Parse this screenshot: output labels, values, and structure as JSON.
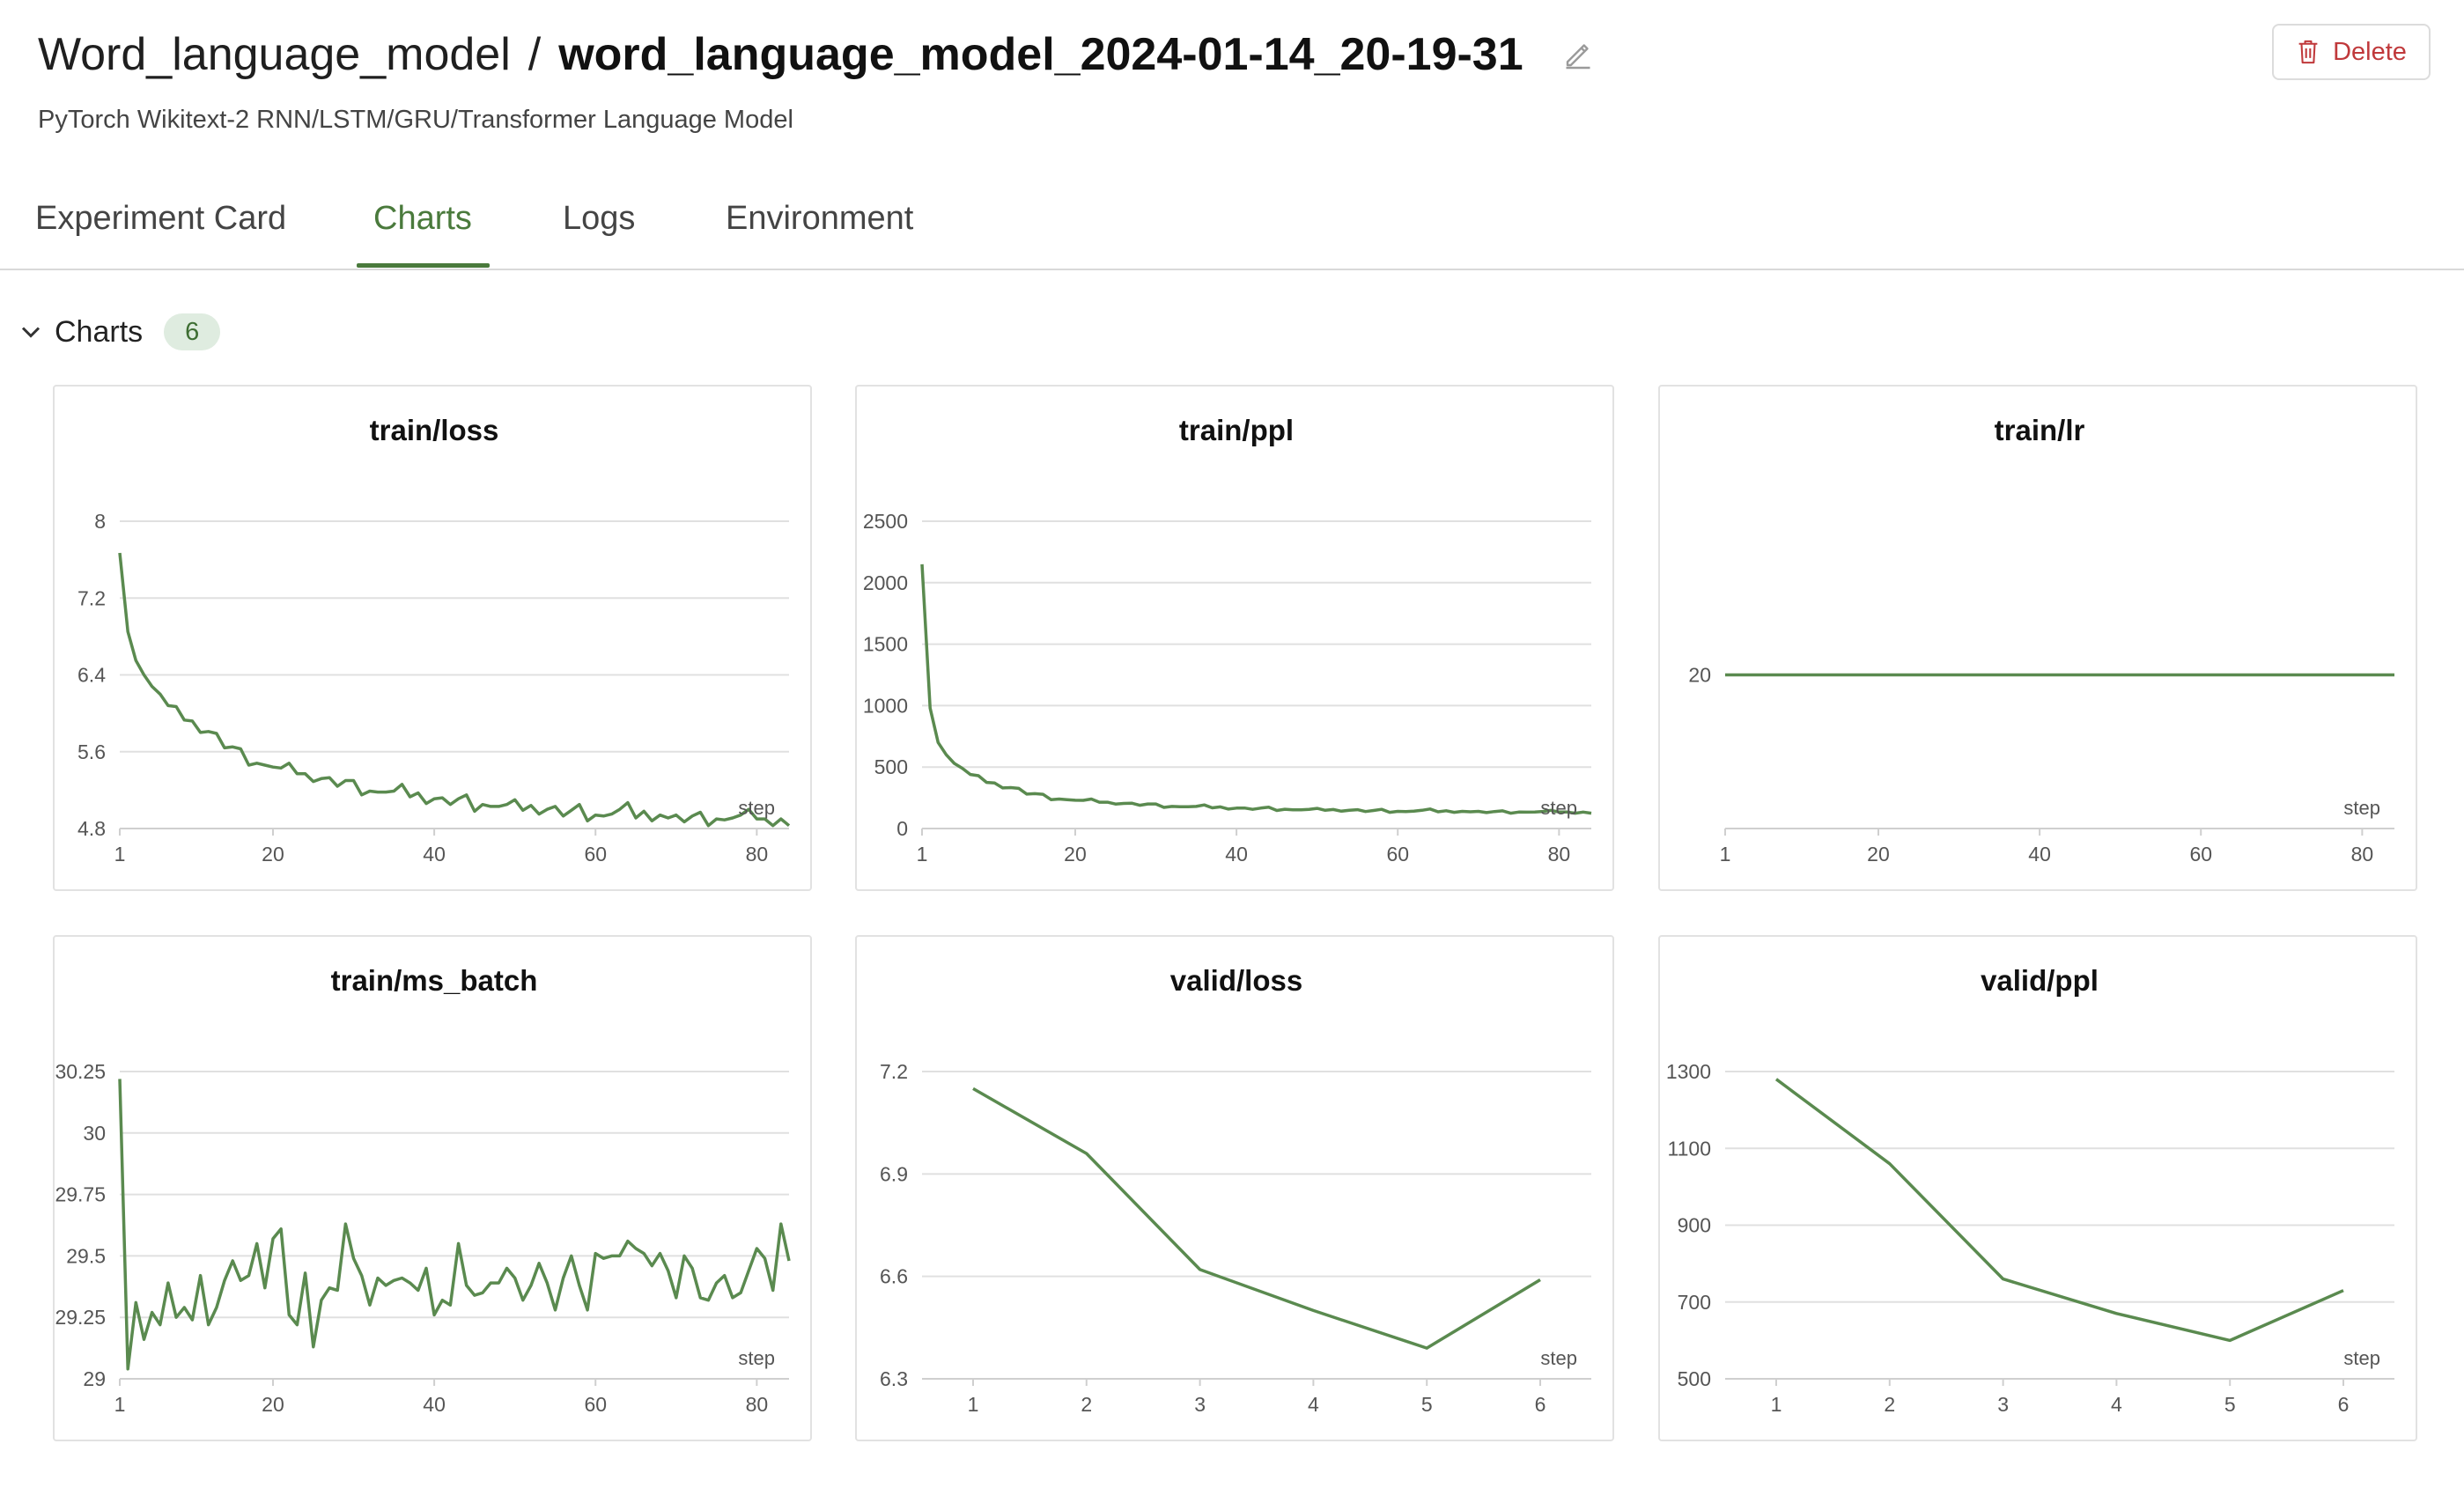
{
  "header": {
    "project": "Word_language_model",
    "separator": "/",
    "experiment": "word_language_model_2024-01-14_20-19-31",
    "description": "PyTorch Wikitext-2 RNN/LSTM/GRU/Transformer Language Model",
    "delete_label": "Delete",
    "edit_icon": "pencil-icon",
    "delete_icon": "trash-icon"
  },
  "tabs": [
    {
      "label": "Experiment Card",
      "active": false
    },
    {
      "label": "Charts",
      "active": true
    },
    {
      "label": "Logs",
      "active": false
    },
    {
      "label": "Environment",
      "active": false
    }
  ],
  "section": {
    "label": "Charts",
    "count": "6"
  },
  "colors": {
    "accent": "#4a7a3c",
    "line": "#5a8a4f",
    "grid": "#e0e0e0",
    "danger": "#c0393b"
  },
  "chart_data": [
    {
      "type": "line",
      "title": "train/loss",
      "xlabel": "step",
      "ylim": [
        4.8,
        8
      ],
      "yticks": [
        "8",
        "7.2",
        "6.4",
        "5.6",
        "4.8"
      ],
      "ytickvals": [
        8,
        7.2,
        6.4,
        5.6,
        4.8
      ],
      "xlim": [
        1,
        84
      ],
      "xticks": [
        "1",
        "20",
        "40",
        "60",
        "80"
      ],
      "xtickvals": [
        1,
        20,
        40,
        60,
        80
      ],
      "series": [
        {
          "x": [
            1,
            2,
            3,
            4,
            5,
            6,
            7,
            8,
            9,
            10,
            11,
            12,
            13,
            14,
            15,
            16,
            17,
            18,
            19,
            20,
            21,
            22,
            23,
            24,
            25,
            26,
            27,
            28,
            29,
            30,
            31,
            32,
            33,
            34,
            35,
            36,
            37,
            38,
            39,
            40,
            41,
            42,
            43,
            44,
            45,
            46,
            47,
            48,
            49,
            50,
            51,
            52,
            53,
            54,
            55,
            56,
            57,
            58,
            59,
            60,
            61,
            62,
            63,
            64,
            65,
            66,
            67,
            68,
            69,
            70,
            71,
            72,
            73,
            74,
            75,
            76,
            77,
            78,
            79,
            80,
            81,
            82,
            83,
            84
          ],
          "values": [
            7.67,
            6.85,
            6.55,
            6.4,
            6.28,
            6.2,
            6.08,
            6.07,
            5.93,
            5.92,
            5.8,
            5.81,
            5.79,
            5.64,
            5.65,
            5.63,
            5.46,
            5.48,
            5.46,
            5.44,
            5.43,
            5.48,
            5.37,
            5.37,
            5.29,
            5.32,
            5.33,
            5.24,
            5.3,
            5.3,
            5.15,
            5.19,
            5.18,
            5.18,
            5.19,
            5.26,
            5.13,
            5.17,
            5.06,
            5.11,
            5.12,
            5.05,
            5.11,
            5.15,
            4.98,
            5.05,
            5.03,
            5.03,
            5.05,
            5.1,
            4.99,
            5.04,
            4.95,
            5.0,
            5.03,
            4.93,
            4.99,
            5.05,
            4.88,
            4.94,
            4.93,
            4.95,
            5.0,
            5.07,
            4.91,
            4.98,
            4.88,
            4.94,
            4.91,
            4.94,
            4.87,
            4.93,
            4.97,
            4.83,
            4.9,
            4.89,
            4.91,
            4.94,
            5.0,
            4.9,
            4.9,
            4.83,
            4.9,
            4.83
          ]
        }
      ]
    },
    {
      "type": "line",
      "title": "train/ppl",
      "xlabel": "step",
      "ylim": [
        0,
        2500
      ],
      "yticks": [
        "2500",
        "2000",
        "1500",
        "1000",
        "500",
        "0"
      ],
      "ytickvals": [
        2500,
        2000,
        1500,
        1000,
        500,
        0
      ],
      "xlim": [
        1,
        84
      ],
      "xticks": [
        "1",
        "20",
        "40",
        "60",
        "80"
      ],
      "xtickvals": [
        1,
        20,
        40,
        60,
        80
      ],
      "series": [
        {
          "x": [
            1,
            2,
            3,
            4,
            5,
            6,
            7,
            8,
            9,
            10,
            11,
            12,
            13,
            14,
            15,
            16,
            17,
            18,
            19,
            20,
            21,
            22,
            23,
            24,
            25,
            26,
            27,
            28,
            29,
            30,
            31,
            32,
            33,
            34,
            35,
            36,
            37,
            38,
            39,
            40,
            41,
            42,
            43,
            44,
            45,
            46,
            47,
            48,
            49,
            50,
            51,
            52,
            53,
            54,
            55,
            56,
            57,
            58,
            59,
            60,
            61,
            62,
            63,
            64,
            65,
            66,
            67,
            68,
            69,
            70,
            71,
            72,
            73,
            74,
            75,
            76,
            77,
            78,
            79,
            80,
            81,
            82,
            83,
            84
          ],
          "values": [
            2150,
            980,
            700,
            600,
            530,
            490,
            440,
            430,
            375,
            370,
            330,
            333,
            327,
            280,
            284,
            279,
            235,
            240,
            235,
            230,
            229,
            240,
            214,
            214,
            199,
            204,
            206,
            189,
            200,
            200,
            172,
            180,
            178,
            178,
            180,
            192,
            168,
            176,
            158,
            166,
            167,
            156,
            166,
            173,
            147,
            157,
            152,
            152,
            156,
            164,
            148,
            155,
            141,
            149,
            153,
            138,
            147,
            156,
            132,
            140,
            138,
            141,
            148,
            159,
            136,
            145,
            132,
            140,
            136,
            140,
            130,
            138,
            144,
            125,
            134,
            133,
            135,
            139,
            148,
            134,
            134,
            125,
            134,
            125
          ]
        }
      ]
    },
    {
      "type": "line",
      "title": "train/lr",
      "xlabel": "step",
      "ylim": [
        19,
        21
      ],
      "yticks": [
        "20"
      ],
      "ytickvals": [
        20
      ],
      "xlim": [
        1,
        84
      ],
      "xticks": [
        "1",
        "20",
        "40",
        "60",
        "80"
      ],
      "xtickvals": [
        1,
        20,
        40,
        60,
        80
      ],
      "series": [
        {
          "x": [
            1,
            84
          ],
          "values": [
            20,
            20
          ]
        }
      ]
    },
    {
      "type": "line",
      "title": "train/ms_batch",
      "xlabel": "step",
      "ylim": [
        29,
        30.25
      ],
      "yticks": [
        "30.25",
        "30",
        "29.75",
        "29.5",
        "29.25",
        "29"
      ],
      "ytickvals": [
        30.25,
        30,
        29.75,
        29.5,
        29.25,
        29
      ],
      "xlim": [
        1,
        84
      ],
      "xticks": [
        "1",
        "20",
        "40",
        "60",
        "80"
      ],
      "xtickvals": [
        1,
        20,
        40,
        60,
        80
      ],
      "series": [
        {
          "x": [
            1,
            2,
            3,
            4,
            5,
            6,
            7,
            8,
            9,
            10,
            11,
            12,
            13,
            14,
            15,
            16,
            17,
            18,
            19,
            20,
            21,
            22,
            23,
            24,
            25,
            26,
            27,
            28,
            29,
            30,
            31,
            32,
            33,
            34,
            35,
            36,
            37,
            38,
            39,
            40,
            41,
            42,
            43,
            44,
            45,
            46,
            47,
            48,
            49,
            50,
            51,
            52,
            53,
            54,
            55,
            56,
            57,
            58,
            59,
            60,
            61,
            62,
            63,
            64,
            65,
            66,
            67,
            68,
            69,
            70,
            71,
            72,
            73,
            74,
            75,
            76,
            77,
            78,
            79,
            80,
            81,
            82,
            83,
            84
          ],
          "values": [
            30.22,
            29.04,
            29.31,
            29.16,
            29.27,
            29.22,
            29.39,
            29.25,
            29.29,
            29.24,
            29.42,
            29.22,
            29.29,
            29.4,
            29.48,
            29.4,
            29.42,
            29.55,
            29.37,
            29.57,
            29.61,
            29.26,
            29.22,
            29.43,
            29.13,
            29.32,
            29.37,
            29.36,
            29.63,
            29.49,
            29.42,
            29.3,
            29.41,
            29.38,
            29.4,
            29.41,
            29.39,
            29.36,
            29.45,
            29.26,
            29.32,
            29.3,
            29.55,
            29.38,
            29.34,
            29.35,
            29.39,
            29.39,
            29.45,
            29.41,
            29.32,
            29.38,
            29.47,
            29.39,
            29.28,
            29.41,
            29.5,
            29.38,
            29.28,
            29.51,
            29.49,
            29.5,
            29.5,
            29.56,
            29.53,
            29.51,
            29.46,
            29.51,
            29.44,
            29.33,
            29.5,
            29.45,
            29.33,
            29.32,
            29.39,
            29.42,
            29.33,
            29.35,
            29.44,
            29.53,
            29.49,
            29.36,
            29.63,
            29.48
          ]
        }
      ]
    },
    {
      "type": "line",
      "title": "valid/loss",
      "xlabel": "step",
      "ylim": [
        6.3,
        7.2
      ],
      "yticks": [
        "7.2",
        "6.9",
        "6.6",
        "6.3"
      ],
      "ytickvals": [
        7.2,
        6.9,
        6.6,
        6.3
      ],
      "xlim": [
        0.55,
        6.45
      ],
      "xticks": [
        "1",
        "2",
        "3",
        "4",
        "5",
        "6"
      ],
      "xtickvals": [
        1,
        2,
        3,
        4,
        5,
        6
      ],
      "series": [
        {
          "x": [
            1,
            2,
            3,
            4,
            5,
            6
          ],
          "values": [
            7.15,
            6.96,
            6.62,
            6.5,
            6.39,
            6.59
          ]
        }
      ]
    },
    {
      "type": "line",
      "title": "valid/ppl",
      "xlabel": "step",
      "ylim": [
        500,
        1300
      ],
      "yticks": [
        "1300",
        "1100",
        "900",
        "700",
        "500"
      ],
      "ytickvals": [
        1300,
        1100,
        900,
        700,
        500
      ],
      "xlim": [
        0.55,
        6.45
      ],
      "xticks": [
        "1",
        "2",
        "3",
        "4",
        "5",
        "6"
      ],
      "xtickvals": [
        1,
        2,
        3,
        4,
        5,
        6
      ],
      "series": [
        {
          "x": [
            1,
            2,
            3,
            4,
            5,
            6
          ],
          "values": [
            1280,
            1060,
            760,
            670,
            600,
            730
          ]
        }
      ]
    }
  ]
}
